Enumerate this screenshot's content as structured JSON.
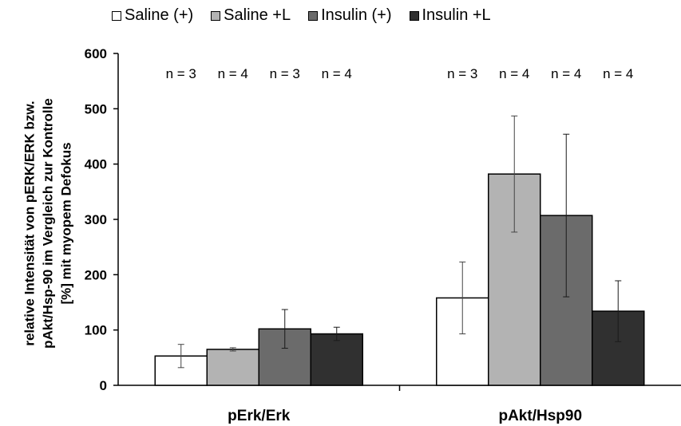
{
  "chart_data": {
    "type": "bar",
    "categories": [
      "pErk/Erk",
      "pAkt/Hsp90"
    ],
    "series": [
      {
        "name": "Saline (+)",
        "values": [
          53,
          158
        ],
        "errors": [
          21,
          65
        ],
        "n": [
          "n = 3",
          "n = 3"
        ],
        "color": "#ffffff"
      },
      {
        "name": "Saline +L",
        "values": [
          65,
          382
        ],
        "errors": [
          3,
          105
        ],
        "n": [
          "n = 4",
          "n = 4"
        ],
        "color": "#b3b3b3"
      },
      {
        "name": "Insulin (+)",
        "values": [
          102,
          307
        ],
        "errors": [
          35,
          147
        ],
        "n": [
          "n = 3",
          "n = 4"
        ],
        "color": "#6b6b6b"
      },
      {
        "name": "Insulin +L",
        "values": [
          93,
          134
        ],
        "errors": [
          12,
          55
        ],
        "n": [
          "n = 4",
          "n = 4"
        ],
        "color": "#303030"
      }
    ],
    "ylabel": "relative Intensität von pERK/ERK bzw.\npAkt/Hsp-90 im Vergleich zur Kontrolle\n[%] mit myopem Defokus",
    "xlabel": "",
    "ylim": [
      0,
      600
    ],
    "yticks": [
      "0",
      "100",
      "200",
      "300",
      "400",
      "500",
      "600"
    ],
    "grid": false,
    "legend_position": "top"
  }
}
